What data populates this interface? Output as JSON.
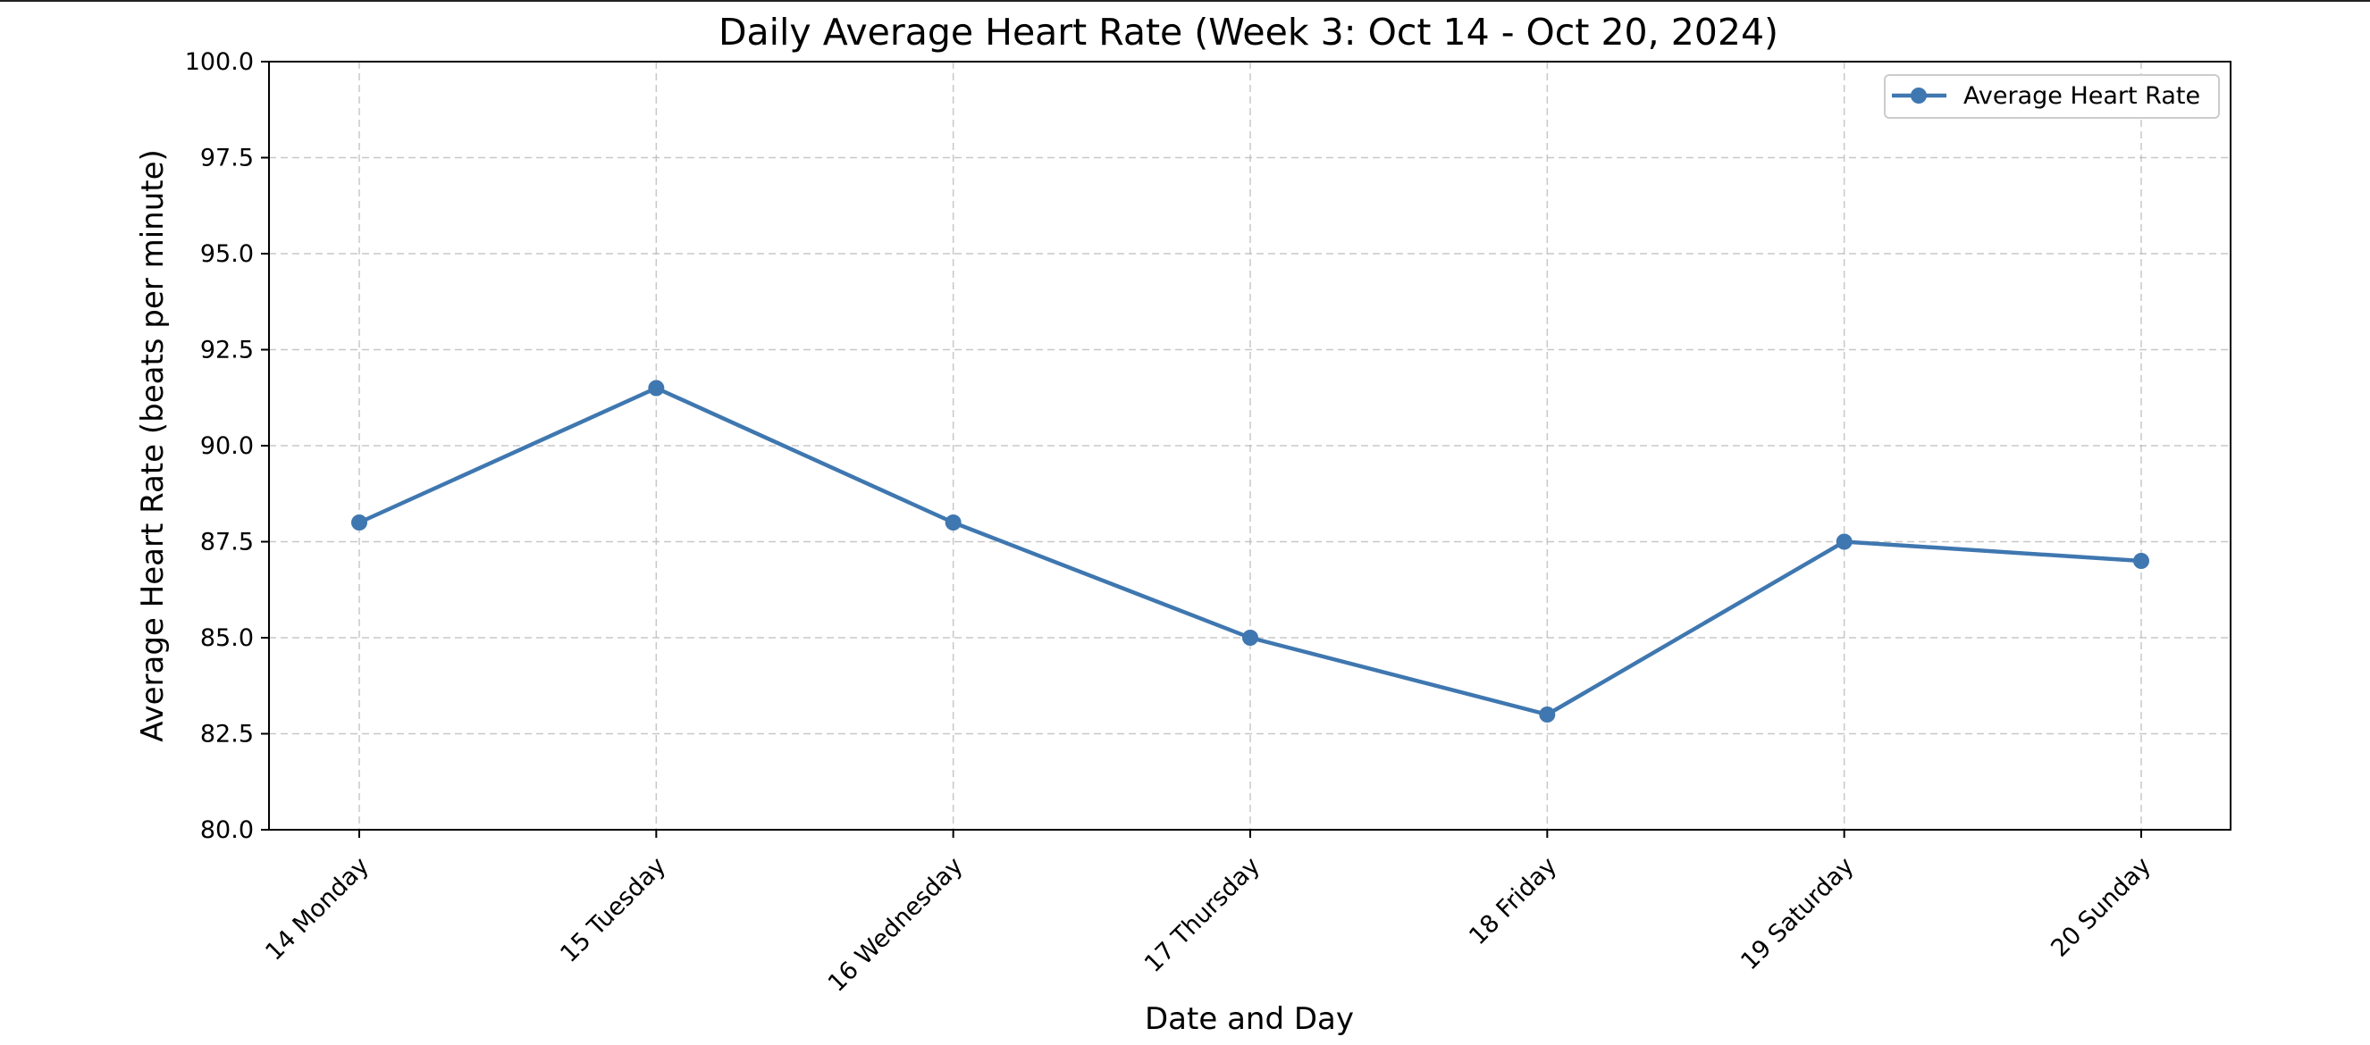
{
  "chart_data": {
    "type": "line",
    "title": "Daily Average Heart Rate (Week 3: Oct 14 - Oct 20, 2024)",
    "xlabel": "Date and Day",
    "ylabel": "Average Heart Rate (beats per minute)",
    "categories": [
      "14 Monday",
      "15 Tuesday",
      "16 Wednesday",
      "17 Thursday",
      "18 Friday",
      "19 Saturday",
      "20 Sunday"
    ],
    "series": [
      {
        "name": "Average Heart Rate",
        "values": [
          88.0,
          91.5,
          88.0,
          85.0,
          83.0,
          87.5,
          87.0
        ],
        "color": "#3f77b0",
        "marker": "circle"
      }
    ],
    "ylim": [
      80.0,
      100.0
    ],
    "yticks": [
      "80.0",
      "82.5",
      "85.0",
      "87.5",
      "90.0",
      "92.5",
      "95.0",
      "97.5",
      "100.0"
    ],
    "grid": true,
    "grid_style": "dashed",
    "legend_position": "top-right"
  }
}
